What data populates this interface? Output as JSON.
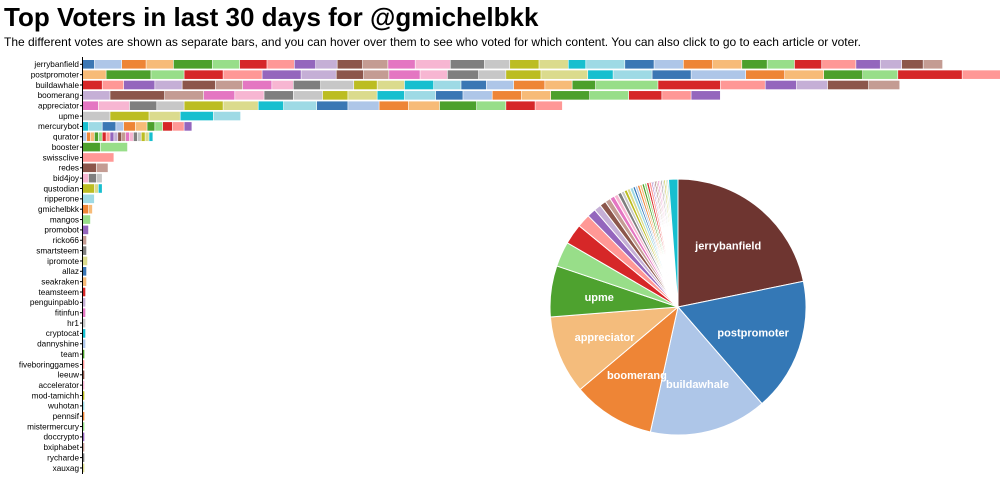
{
  "page": {
    "title": "Top Voters in last 30 days for @gmichelbkk",
    "subtitle": "The different votes are shown as separate bars, and you can hover over them to see who voted for which content. You can also click to go to each article or voter."
  },
  "palette": [
    "#3b77b4",
    "#aec6e8",
    "#ee8536",
    "#f7bb78",
    "#4ca02c",
    "#98de89",
    "#d62728",
    "#ff9896",
    "#9466bd",
    "#c5afd6",
    "#8c564b",
    "#c49c93",
    "#e476c2",
    "#f7b6d2",
    "#7f7f7f",
    "#c7c7c7",
    "#bcbd22",
    "#dbdb8d",
    "#17bfcf",
    "#9edae5"
  ],
  "chart_data": [
    {
      "type": "bar",
      "stacked": true,
      "orientation": "horizontal",
      "note": "Each segment is one separate vote; widths estimated from the image in relative vote units.",
      "categories": [
        "jerrybanfield",
        "postpromoter",
        "buildawhale",
        "boomerang",
        "appreciator",
        "upme",
        "mercurybot",
        "qurator",
        "booster",
        "swissclive",
        "redes",
        "bid4joy",
        "qustodian",
        "ripperone",
        "gmichelbkk",
        "mangos",
        "promobot",
        "ricko66",
        "smartsteem",
        "ipromote",
        "allaz",
        "seakraken",
        "teamsteem",
        "penguinpablo",
        "fitinfun",
        "hr1",
        "cryptocat",
        "dannyshine",
        "team",
        "fiveboringgames",
        "leeuw",
        "accelerator",
        "mod-tamichh",
        "wuhotan",
        "pennsif",
        "mistermercury",
        "doccrypto",
        "bxiphabet",
        "rycharde",
        "xauxag"
      ],
      "segments": [
        [
          12,
          28,
          25,
          28,
          40,
          28,
          28,
          28,
          22,
          22,
          26,
          26,
          28,
          36,
          35,
          26,
          30,
          30,
          18,
          40,
          30,
          30,
          30,
          30,
          26,
          28,
          28,
          35,
          25,
          22,
          22,
          20
        ],
        [
          24,
          46,
          34,
          40,
          40,
          40,
          36,
          28,
          26,
          32,
          28,
          32,
          28,
          36,
          48,
          26,
          40,
          40,
          56,
          40,
          40,
          40,
          36,
          66,
          46
        ],
        [
          20,
          22,
          32,
          28,
          34,
          28,
          30,
          22,
          28,
          34,
          24,
          28,
          30,
          28,
          26,
          28,
          32,
          28,
          24,
          64,
          64,
          46,
          32,
          32,
          42,
          32
        ],
        [
          28,
          56,
          40,
          32,
          30,
          30,
          30,
          26,
          30,
          28,
          32,
          28,
          30,
          30,
          30,
          40,
          40,
          34,
          30,
          30
        ],
        [
          16,
          32,
          28,
          28,
          40,
          36,
          26,
          34,
          32,
          32,
          30,
          32,
          38,
          30,
          30,
          28
        ],
        [
          28,
          40,
          32,
          34,
          28
        ],
        [
          6,
          14,
          14,
          8,
          12,
          12,
          8,
          8,
          10,
          12,
          8
        ],
        [
          4,
          4,
          4,
          4,
          4,
          4,
          4,
          4,
          4,
          4,
          4,
          4,
          4,
          4,
          4,
          4,
          4,
          4
        ],
        [
          18,
          28
        ],
        [
          32
        ],
        [
          14,
          12
        ],
        [
          6,
          8,
          6
        ],
        [
          12,
          4,
          4
        ],
        [
          12
        ],
        [
          6,
          4
        ],
        [
          8
        ],
        [
          6
        ],
        [
          4
        ],
        [
          4
        ],
        [
          5
        ],
        [
          4
        ],
        [
          4
        ],
        [
          3
        ],
        [
          3
        ],
        [
          3
        ],
        [
          3
        ],
        [
          3
        ],
        [
          3
        ],
        [
          2
        ],
        [
          2
        ],
        [
          2
        ],
        [
          2
        ],
        [
          2
        ],
        [
          2
        ],
        [
          2
        ],
        [
          2
        ],
        [
          2
        ],
        [
          2
        ],
        [
          2
        ],
        [
          2
        ]
      ]
    },
    {
      "type": "pie",
      "note": "Share of total votes per voter; values are rough estimates from slice sizes.",
      "slices": [
        {
          "label": "jerrybanfield",
          "value": 22.0,
          "color": "#6e3530",
          "show_label": true
        },
        {
          "label": "postpromoter",
          "value": 17.0,
          "color": "#3478b6",
          "show_label": true
        },
        {
          "label": "buildawhale",
          "value": 15.0,
          "color": "#aec6e8",
          "show_label": true
        },
        {
          "label": "boomerang",
          "value": 10.5,
          "color": "#ee8536",
          "show_label": true
        },
        {
          "label": "appreciator",
          "value": 10.0,
          "color": "#f4bc7c",
          "show_label": true
        },
        {
          "label": "upme",
          "value": 6.5,
          "color": "#4ea22f",
          "show_label": true
        },
        {
          "label": "mercurybot",
          "value": 3.2,
          "color": "#98de89",
          "show_label": false
        },
        {
          "label": "qurator",
          "value": 2.6,
          "color": "#d62728",
          "show_label": false
        },
        {
          "label": "booster",
          "value": 1.7,
          "color": "#ff9896",
          "show_label": false
        },
        {
          "label": "swissclive",
          "value": 1.1,
          "color": "#9466bd",
          "show_label": false
        },
        {
          "label": "redes",
          "value": 0.9,
          "color": "#c5afd6",
          "show_label": false
        },
        {
          "label": "bid4joy",
          "value": 0.8,
          "color": "#8c564b",
          "show_label": false
        },
        {
          "label": "qustodian",
          "value": 0.7,
          "color": "#c49c93",
          "show_label": false
        },
        {
          "label": "ripperone",
          "value": 0.6,
          "color": "#e476c2",
          "show_label": false
        },
        {
          "label": "gmichelbkk",
          "value": 0.5,
          "color": "#f7b6d2",
          "show_label": false
        },
        {
          "label": "mangos",
          "value": 0.5,
          "color": "#7f7f7f",
          "show_label": false
        },
        {
          "label": "promobot",
          "value": 0.4,
          "color": "#c7c7c7",
          "show_label": false
        },
        {
          "label": "ricko66",
          "value": 0.4,
          "color": "#bcbd22",
          "show_label": false
        },
        {
          "label": "smartsteem",
          "value": 0.4,
          "color": "#dbdb8d",
          "show_label": false
        },
        {
          "label": "ipromote",
          "value": 0.4,
          "color": "#9edae5",
          "show_label": false
        },
        {
          "label": "allaz",
          "value": 0.3,
          "color": "#3478b6",
          "show_label": false
        },
        {
          "label": "seakraken",
          "value": 0.3,
          "color": "#aec6e8",
          "show_label": false
        },
        {
          "label": "teamsteem",
          "value": 0.3,
          "color": "#ee8536",
          "show_label": false
        },
        {
          "label": "penguinpablo",
          "value": 0.3,
          "color": "#f7bb78",
          "show_label": false
        },
        {
          "label": "fitinfun",
          "value": 0.3,
          "color": "#4ca02c",
          "show_label": false
        },
        {
          "label": "hr1",
          "value": 0.3,
          "color": "#98de89",
          "show_label": false
        },
        {
          "label": "cryptocat",
          "value": 0.3,
          "color": "#d62728",
          "show_label": false
        },
        {
          "label": "dannyshine",
          "value": 0.3,
          "color": "#ff9896",
          "show_label": false
        },
        {
          "label": "team",
          "value": 0.2,
          "color": "#9466bd",
          "show_label": false
        },
        {
          "label": "fiveboringgames",
          "value": 0.2,
          "color": "#c5afd6",
          "show_label": false
        },
        {
          "label": "leeuw",
          "value": 0.2,
          "color": "#8c564b",
          "show_label": false
        },
        {
          "label": "accelerator",
          "value": 0.2,
          "color": "#c49c93",
          "show_label": false
        },
        {
          "label": "mod-tamichh",
          "value": 0.2,
          "color": "#e476c2",
          "show_label": false
        },
        {
          "label": "wuhotan",
          "value": 0.2,
          "color": "#f7b6d2",
          "show_label": false
        },
        {
          "label": "pennsif",
          "value": 0.2,
          "color": "#7f7f7f",
          "show_label": false
        },
        {
          "label": "mistermercury",
          "value": 0.2,
          "color": "#c7c7c7",
          "show_label": false
        },
        {
          "label": "doccrypto",
          "value": 0.2,
          "color": "#bcbd22",
          "show_label": false
        },
        {
          "label": "bxiphabet",
          "value": 0.2,
          "color": "#dbdb8d",
          "show_label": false
        },
        {
          "label": "rycharde",
          "value": 0.2,
          "color": "#9edae5",
          "show_label": false
        },
        {
          "label": "xauxag",
          "value": 1.2,
          "color": "#17bfcf",
          "show_label": false
        }
      ]
    }
  ]
}
